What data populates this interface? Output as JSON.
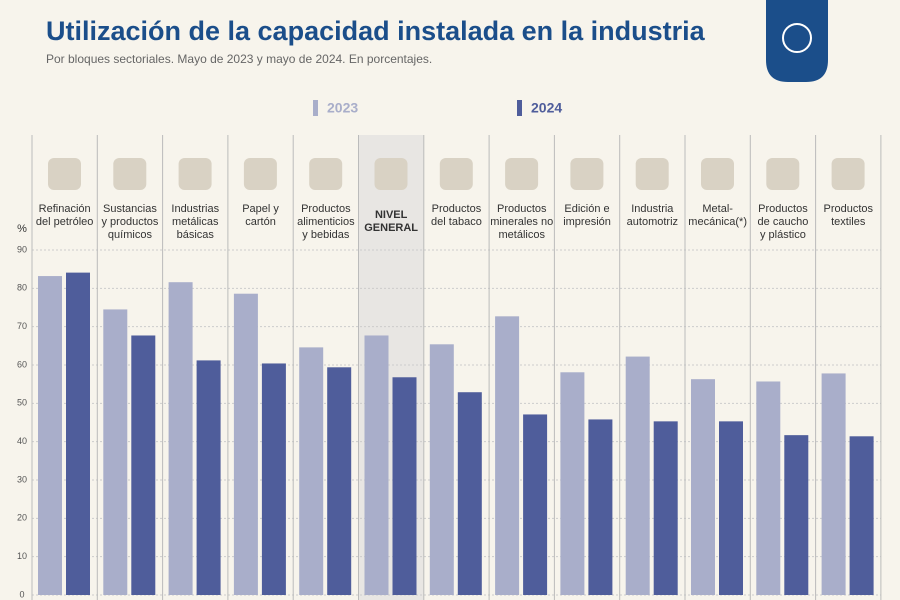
{
  "chart_data": {
    "type": "bar",
    "title": "Utilización de la capacidad instalada en la industria",
    "subtitle": "Por bloques sectoriales. Mayo de 2023 y mayo de 2024. En porcentajes.",
    "y_label": "%",
    "categories": [
      "Refinación\ndel petróleo",
      "Sustancias\ny productos\nquímicos",
      "Industrias\nmetálicas\nbásicas",
      "Papel y\ncartón",
      "Productos\nalimenticios\ny bebidas",
      "NIVEL\nGENERAL",
      "Productos\ndel tabaco",
      "Productos\nminerales no\nmetálicos",
      "Edición e\nimpresión",
      "Industria\nautomotriz",
      "Metal-\nmecánica(*)",
      "Productos\nde caucho\ny plástico",
      "Productos\ntextiles"
    ],
    "highlight_index": 5,
    "series": [
      {
        "name": "2023",
        "color": "#a9aeca",
        "values": [
          83.2,
          74.5,
          81.6,
          78.6,
          64.6,
          67.7,
          65.4,
          72.7,
          58.1,
          62.2,
          56.3,
          55.7,
          57.8
        ]
      },
      {
        "name": "2024",
        "color": "#4f5d9b",
        "values": [
          84.1,
          67.7,
          61.2,
          60.4,
          59.4,
          56.8,
          52.9,
          47.1,
          45.8,
          45.3,
          45.3,
          41.7,
          41.4
        ]
      }
    ],
    "ylim": [
      0,
      90
    ],
    "yticks": [
      0,
      10,
      20,
      30,
      40,
      50,
      60,
      70,
      80,
      90
    ],
    "grid": true
  }
}
